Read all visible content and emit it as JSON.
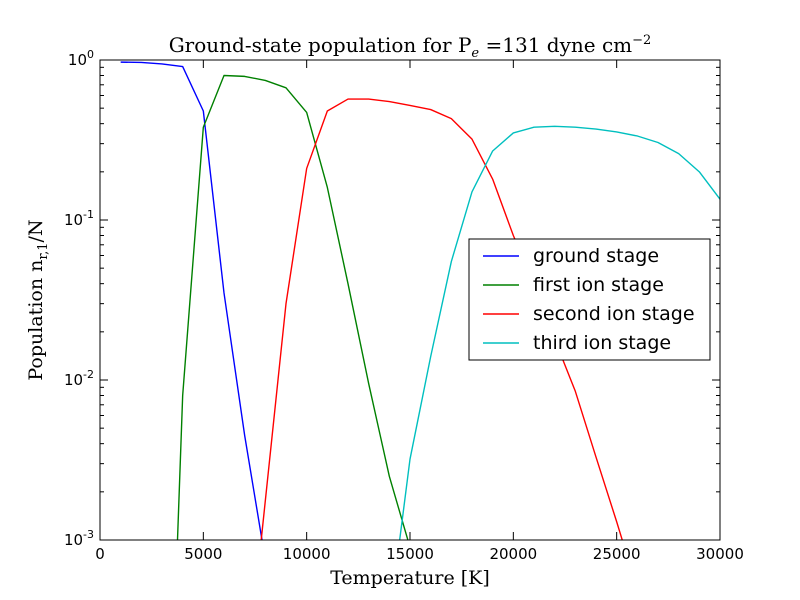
{
  "chart_data": {
    "type": "line",
    "title": "Ground-state population for P",
    "title_sub": "e",
    "title_mid": " =131 dyne cm",
    "title_sup": "−2",
    "xlabel": "Temperature [K]",
    "ylabel": "Population n",
    "ylabel_sub": "r,1",
    "ylabel_end": "/N",
    "xlim": [
      0,
      30000
    ],
    "ylim": [
      0.001,
      1.0
    ],
    "yscale": "log",
    "grid": false,
    "legend_position": "center-right",
    "xticks": [
      {
        "value": 0,
        "label": "0"
      },
      {
        "value": 5000,
        "label": "5000"
      },
      {
        "value": 10000,
        "label": "10000"
      },
      {
        "value": 15000,
        "label": "15000"
      },
      {
        "value": 20000,
        "label": "20000"
      },
      {
        "value": 25000,
        "label": "25000"
      },
      {
        "value": 30000,
        "label": "30000"
      }
    ],
    "yticks": [
      {
        "value": 0.001,
        "base": "10",
        "exp": "-3"
      },
      {
        "value": 0.01,
        "base": "10",
        "exp": "-2"
      },
      {
        "value": 0.1,
        "base": "10",
        "exp": "-1"
      },
      {
        "value": 1.0,
        "base": "10",
        "exp": "0"
      }
    ],
    "series": [
      {
        "name": "ground stage",
        "color": "#0000ff",
        "x": [
          1000,
          2000,
          3000,
          4000,
          5000,
          6000,
          7000,
          8000
        ],
        "y": [
          0.97,
          0.965,
          0.945,
          0.91,
          0.48,
          0.035,
          0.0045,
          0.00075
        ]
      },
      {
        "name": "first ion stage",
        "color": "#008000",
        "x": [
          3750,
          4000,
          5000,
          6000,
          7000,
          8000,
          9000,
          10000,
          11000,
          12000,
          13000,
          14000,
          15000
        ],
        "y": [
          0.001,
          0.008,
          0.38,
          0.8,
          0.79,
          0.745,
          0.67,
          0.47,
          0.16,
          0.04,
          0.0095,
          0.0025,
          0.0009
        ]
      },
      {
        "name": "second ion stage",
        "color": "#ff0000",
        "x": [
          7800,
          9000,
          10000,
          11000,
          12000,
          13000,
          14000,
          15000,
          16000,
          17000,
          18000,
          19000,
          20000,
          21000,
          22000,
          23000,
          24000,
          25000,
          25500
        ],
        "y": [
          0.001,
          0.03,
          0.21,
          0.48,
          0.57,
          0.57,
          0.55,
          0.52,
          0.49,
          0.43,
          0.32,
          0.18,
          0.08,
          0.04,
          0.018,
          0.0085,
          0.0033,
          0.0013,
          0.0008
        ]
      },
      {
        "name": "third ion stage",
        "color": "#00bfbf",
        "x": [
          14500,
          15000,
          16000,
          17000,
          18000,
          19000,
          20000,
          21000,
          22000,
          23000,
          24000,
          25000,
          26000,
          27000,
          28000,
          29000,
          30000
        ],
        "y": [
          0.001,
          0.0032,
          0.014,
          0.055,
          0.15,
          0.27,
          0.35,
          0.38,
          0.385,
          0.38,
          0.37,
          0.355,
          0.335,
          0.305,
          0.26,
          0.2,
          0.135
        ]
      }
    ]
  }
}
